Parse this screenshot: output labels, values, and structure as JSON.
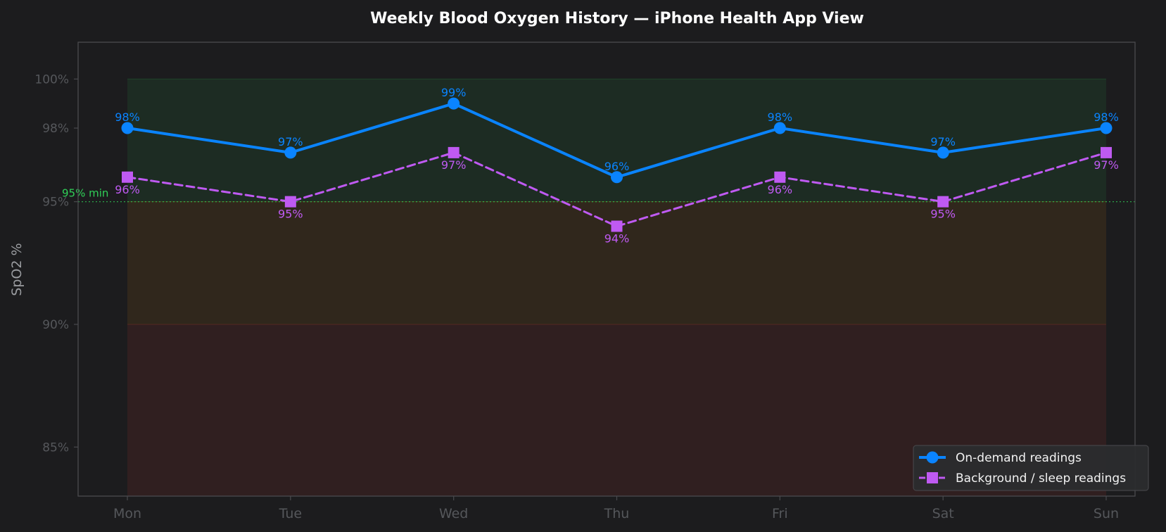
{
  "chart_data": {
    "type": "line",
    "title": "Weekly Blood Oxygen History — iPhone Health App View",
    "ylabel": "SpO2 %",
    "xlabel": "",
    "categories": [
      "Mon",
      "Tue",
      "Wed",
      "Thu",
      "Fri",
      "Sat",
      "Sun"
    ],
    "ylim": [
      83,
      101.5
    ],
    "yticks": [
      85,
      90,
      95,
      98,
      100
    ],
    "ytick_labels": [
      "85%",
      "90%",
      "95%",
      "98%",
      "100%"
    ],
    "grid": false,
    "legend_position": "bottom-right",
    "series": [
      {
        "name": "On-demand readings",
        "values": [
          98,
          97,
          99,
          96,
          98,
          97,
          98
        ],
        "labels": [
          "98%",
          "97%",
          "99%",
          "96%",
          "98%",
          "97%",
          "98%"
        ],
        "color": "#0a84ff",
        "marker": "circle",
        "line_style": "solid",
        "label_position": "above"
      },
      {
        "name": "Background / sleep readings",
        "values": [
          96,
          95,
          97,
          94,
          96,
          95,
          97
        ],
        "labels": [
          "96%",
          "95%",
          "97%",
          "94%",
          "96%",
          "95%",
          "97%"
        ],
        "color": "#bf5af2",
        "marker": "square",
        "line_style": "dashed",
        "label_position": "below"
      }
    ],
    "bands": [
      {
        "from": 95,
        "to": 100,
        "color": "#30d158"
      },
      {
        "from": 90,
        "to": 95,
        "color": "#ff9f0a"
      },
      {
        "from": 83,
        "to": 90,
        "color": "#ff453a"
      }
    ],
    "reference_line": {
      "value": 95,
      "label": "95% min",
      "color": "#30d158"
    }
  },
  "colors": {
    "background": "#1c1c1e",
    "plot_background": "#1c1c1e",
    "axis_frame": "#4a4a4e",
    "tick_text": "#55575b"
  }
}
